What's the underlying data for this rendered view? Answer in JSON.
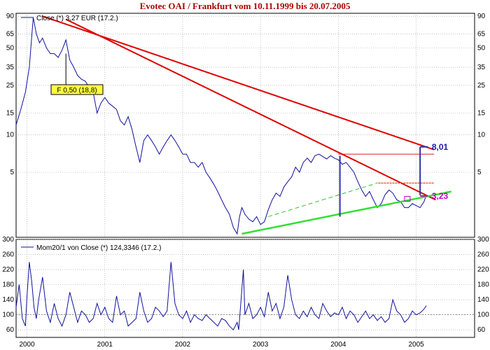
{
  "chart_data": {
    "title": "Evotec OAI / Frankfurt  vom 10.11.1999  bis 20.07.2005",
    "colors": {
      "price": "#1010a0",
      "trend_red": "#e00000",
      "support_green": "#30e030",
      "dashed_green": "#30c030",
      "marker_blue": "#3030b0",
      "label_blue": "#1a1aa8",
      "label_magenta": "#c000c0",
      "box_yellow": "#ffff40",
      "grid": "#9a9a9a"
    },
    "price_panel": {
      "type": "line",
      "scale": "log",
      "ylim": [
        1.5,
        95
      ],
      "y_ticks": [
        5,
        10,
        15,
        25,
        35,
        50,
        65,
        90
      ],
      "y_tick_labels": [
        "5",
        "10",
        "15",
        "25",
        "35",
        "50",
        "65",
        "90"
      ],
      "legend": "Close (*) 3,27 EUR (17.2.)",
      "series": [
        {
          "name": "Close (*) 3,27 EUR (17.2.)",
          "x": [
            1999.86,
            1999.92,
            1999.98,
            2000.03,
            2000.08,
            2000.12,
            2000.16,
            2000.2,
            2000.25,
            2000.3,
            2000.35,
            2000.4,
            2000.45,
            2000.5,
            2000.55,
            2000.6,
            2000.65,
            2000.7,
            2000.75,
            2000.8,
            2000.85,
            2000.9,
            2000.95,
            2001.0,
            2001.05,
            2001.1,
            2001.15,
            2001.2,
            2001.25,
            2001.3,
            2001.35,
            2001.4,
            2001.45,
            2001.5,
            2001.55,
            2001.6,
            2001.65,
            2001.7,
            2001.75,
            2001.8,
            2001.85,
            2001.9,
            2001.95,
            2002.0,
            2002.05,
            2002.1,
            2002.15,
            2002.2,
            2002.25,
            2002.3,
            2002.35,
            2002.4,
            2002.45,
            2002.5,
            2002.55,
            2002.6,
            2002.65,
            2002.7,
            2002.73,
            2002.76,
            2002.8,
            2002.85,
            2002.9,
            2002.95,
            2003.0,
            2003.05,
            2003.1,
            2003.15,
            2003.2,
            2003.25,
            2003.3,
            2003.35,
            2003.4,
            2003.45,
            2003.5,
            2003.55,
            2003.6,
            2003.65,
            2003.7,
            2003.75,
            2003.8,
            2003.85,
            2003.9,
            2003.95,
            2004.0,
            2004.05,
            2004.1,
            2004.15,
            2004.2,
            2004.25,
            2004.3,
            2004.35,
            2004.4,
            2004.45,
            2004.5,
            2004.55,
            2004.6,
            2004.65,
            2004.7,
            2004.75,
            2004.8,
            2004.85,
            2004.9,
            2004.95,
            2005.0,
            2005.05,
            2005.1,
            2005.13
          ],
          "values": [
            12,
            16,
            22,
            35,
            88,
            65,
            55,
            60,
            50,
            45,
            45,
            42,
            48,
            58,
            40,
            35,
            30,
            28,
            27,
            24,
            22,
            15,
            18,
            20,
            18,
            17,
            16,
            13,
            12,
            14,
            11,
            8,
            6,
            9,
            10,
            9,
            8,
            7,
            8,
            9,
            10,
            9,
            8,
            7,
            7,
            6,
            6,
            5.5,
            6,
            5,
            4.5,
            4,
            3.5,
            3,
            2.6,
            2.3,
            1.8,
            1.6,
            2.2,
            2.6,
            2.3,
            2.1,
            2.0,
            2.2,
            1.9,
            2.0,
            2.5,
            3.0,
            3.4,
            3.2,
            3.8,
            4.2,
            4.6,
            5.5,
            5.0,
            6.0,
            6.5,
            6.0,
            6.8,
            7.0,
            6.7,
            6.4,
            6.8,
            6.5,
            6.3,
            5.8,
            6.0,
            5.5,
            5.0,
            4.2,
            3.6,
            3.2,
            3.5,
            3.0,
            2.6,
            2.8,
            3.3,
            3.6,
            3.4,
            3.0,
            2.9,
            2.6,
            2.6,
            2.8,
            2.7,
            2.6,
            2.9,
            3.27
          ]
        }
      ],
      "annotations": [
        {
          "label": "F 0,50 (18,8)",
          "x": 2000.5,
          "y": 18.8
        },
        {
          "label": "8,01",
          "value": 8.01
        },
        {
          "label": "3,23",
          "value": 3.23
        }
      ]
    },
    "momentum_panel": {
      "type": "line",
      "ylim": [
        40,
        300
      ],
      "y_ticks": [
        60,
        100,
        140,
        180,
        220,
        260,
        300
      ],
      "y_tick_labels": [
        "60",
        "100",
        "140",
        "180",
        "220",
        "260",
        "300"
      ],
      "legend": "Mom20/1 von Close (*) 124,3346 (17.2.)",
      "series": [
        {
          "name": "Mom20/1 von Close (*) 124,3346 (17.2.)",
          "x": [
            1999.86,
            1999.9,
            1999.94,
            1999.98,
            2000.0,
            2000.03,
            2000.06,
            2000.09,
            2000.12,
            2000.15,
            2000.2,
            2000.25,
            2000.3,
            2000.35,
            2000.4,
            2000.45,
            2000.5,
            2000.55,
            2000.6,
            2000.65,
            2000.7,
            2000.75,
            2000.8,
            2000.85,
            2000.9,
            2000.95,
            2001.0,
            2001.05,
            2001.1,
            2001.15,
            2001.2,
            2001.25,
            2001.3,
            2001.35,
            2001.4,
            2001.45,
            2001.5,
            2001.55,
            2001.6,
            2001.65,
            2001.7,
            2001.75,
            2001.8,
            2001.85,
            2001.9,
            2001.95,
            2002.0,
            2002.05,
            2002.1,
            2002.15,
            2002.2,
            2002.25,
            2002.3,
            2002.35,
            2002.4,
            2002.45,
            2002.5,
            2002.55,
            2002.6,
            2002.65,
            2002.7,
            2002.72,
            2002.75,
            2002.78,
            2002.8,
            2002.85,
            2002.9,
            2002.95,
            2003.0,
            2003.05,
            2003.1,
            2003.15,
            2003.2,
            2003.25,
            2003.3,
            2003.35,
            2003.4,
            2003.45,
            2003.5,
            2003.55,
            2003.6,
            2003.65,
            2003.7,
            2003.75,
            2003.8,
            2003.85,
            2003.9,
            2003.95,
            2004.0,
            2004.05,
            2004.1,
            2004.15,
            2004.2,
            2004.25,
            2004.3,
            2004.35,
            2004.4,
            2004.45,
            2004.5,
            2004.55,
            2004.6,
            2004.65,
            2004.7,
            2004.75,
            2004.8,
            2004.85,
            2004.9,
            2004.95,
            2005.0,
            2005.05,
            2005.1,
            2005.13
          ],
          "values": [
            120,
            180,
            90,
            70,
            150,
            240,
            190,
            120,
            90,
            140,
            200,
            110,
            80,
            130,
            90,
            70,
            100,
            160,
            120,
            80,
            110,
            100,
            80,
            90,
            130,
            100,
            120,
            90,
            80,
            150,
            100,
            110,
            70,
            80,
            90,
            160,
            110,
            80,
            90,
            120,
            110,
            95,
            110,
            240,
            130,
            100,
            90,
            110,
            80,
            100,
            90,
            85,
            100,
            90,
            80,
            70,
            90,
            85,
            70,
            60,
            80,
            60,
            140,
            220,
            100,
            130,
            90,
            100,
            120,
            95,
            160,
            110,
            130,
            90,
            120,
            205,
            140,
            100,
            90,
            110,
            95,
            120,
            100,
            90,
            130,
            110,
            95,
            105,
            100,
            120,
            90,
            110,
            100,
            80,
            95,
            110,
            90,
            100,
            85,
            95,
            80,
            90,
            140,
            110,
            100,
            80,
            90,
            110,
            100,
            105,
            115,
            124.33
          ]
        }
      ]
    },
    "x_axis": {
      "labels": [
        "2000",
        "2001",
        "2002",
        "2003",
        "2004",
        "2005"
      ]
    }
  }
}
